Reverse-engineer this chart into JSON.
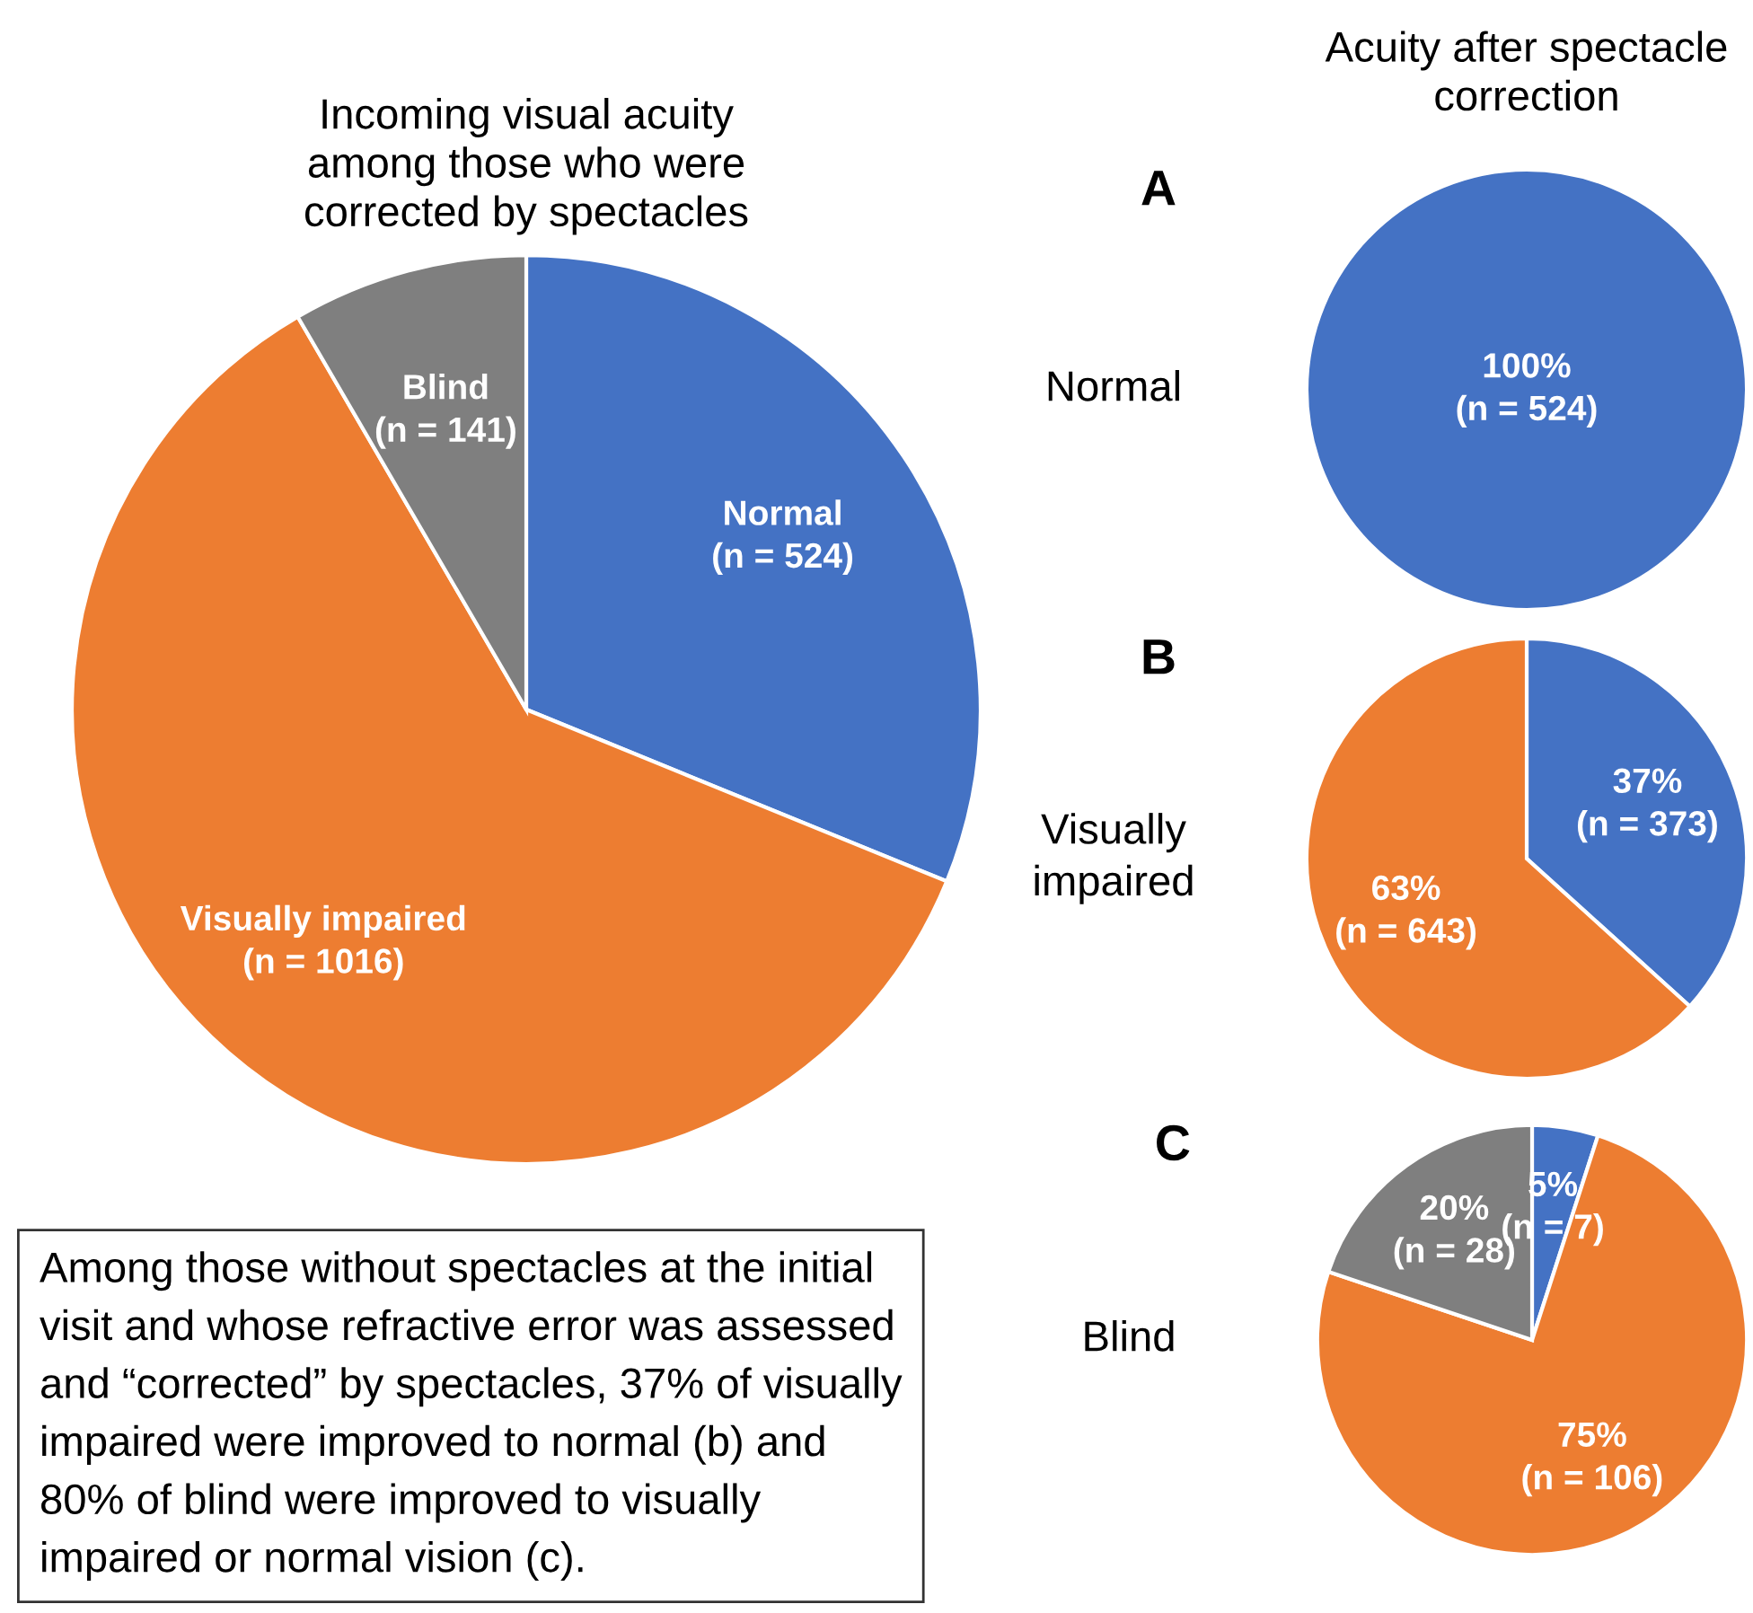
{
  "chart_data": [
    {
      "type": "pie",
      "title": "Incoming visual acuity\namong those who were\ncorrected by spectacles",
      "categories": [
        "Normal",
        "Visually impaired",
        "Blind"
      ],
      "values": [
        524,
        1016,
        141
      ],
      "colors": [
        "#4472c4",
        "#ed7d31",
        "#7f7f7f"
      ],
      "value_labels": [
        "(n = 524)",
        "(n = 1016)",
        "(n = 141)"
      ],
      "annotations": [
        "Among those without spectacles at the initial\nvisit and whose refractive error was assessed\nand “corrected” by spectacles, 37% of visually\nimpaired were improved to normal (b) and\n80% of blind were improved to visually\nimpaired or normal vision (c)."
      ]
    },
    {
      "type": "pie",
      "title": "Acuity after spectacle\ncorrection",
      "ylabel": "Normal",
      "categories": [
        null
      ],
      "values": [
        524
      ],
      "colors": [
        "#4472c4"
      ],
      "value_labels": [
        "100%\n(n = 524)"
      ],
      "annotations": [
        "A"
      ]
    },
    {
      "type": "pie",
      "ylabel": "Visually\nimpaired",
      "categories": [
        null,
        null
      ],
      "values": [
        373,
        643
      ],
      "colors": [
        "#4472c4",
        "#ed7d31"
      ],
      "value_labels": [
        "37%\n(n = 373)",
        "63%\n(n = 643)"
      ],
      "annotations": [
        "B"
      ]
    },
    {
      "type": "pie",
      "ylabel": "Blind",
      "categories": [
        null,
        null,
        null
      ],
      "values": [
        7,
        106,
        28
      ],
      "colors": [
        "#4472c4",
        "#ed7d31",
        "#7f7f7f"
      ],
      "value_labels": [
        "5%\n(n = 7)",
        "75%\n(n = 106)",
        "20%\n(n = 28)"
      ],
      "annotations": [
        "C"
      ]
    }
  ]
}
